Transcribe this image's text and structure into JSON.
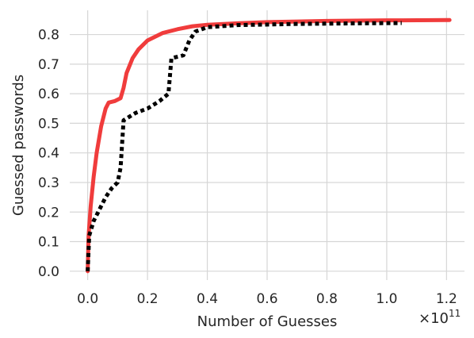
{
  "chart_data": {
    "type": "line",
    "title": "",
    "xlabel": "Number of Guesses",
    "ylabel": "Guessed passwords",
    "x_scale_label": "×10",
    "x_scale_exponent": "11",
    "xlim": [
      -0.06,
      1.26
    ],
    "ylim": [
      -0.03,
      0.882
    ],
    "xticks": [
      0.0,
      0.2,
      0.4,
      0.6,
      0.8,
      1.0,
      1.2
    ],
    "xtick_labels": [
      "0.0",
      "0.2",
      "0.4",
      "0.6",
      "0.8",
      "1.0",
      "1.2"
    ],
    "yticks": [
      0.0,
      0.1,
      0.2,
      0.3,
      0.4,
      0.5,
      0.6,
      0.7,
      0.8
    ],
    "ytick_labels": [
      "0.0",
      "0.1",
      "0.2",
      "0.3",
      "0.4",
      "0.5",
      "0.6",
      "0.7",
      "0.8"
    ],
    "grid": true,
    "legend": "none",
    "series": [
      {
        "style": "solid",
        "color": "#f03c3c",
        "points": [
          [
            0.0,
            0.0
          ],
          [
            0.003,
            0.12
          ],
          [
            0.01,
            0.22
          ],
          [
            0.02,
            0.32
          ],
          [
            0.03,
            0.4
          ],
          [
            0.045,
            0.49
          ],
          [
            0.06,
            0.55
          ],
          [
            0.07,
            0.57
          ],
          [
            0.09,
            0.575
          ],
          [
            0.11,
            0.585
          ],
          [
            0.12,
            0.62
          ],
          [
            0.13,
            0.67
          ],
          [
            0.15,
            0.72
          ],
          [
            0.17,
            0.75
          ],
          [
            0.2,
            0.78
          ],
          [
            0.25,
            0.805
          ],
          [
            0.3,
            0.818
          ],
          [
            0.35,
            0.828
          ],
          [
            0.4,
            0.833
          ],
          [
            0.5,
            0.838
          ],
          [
            0.6,
            0.842
          ],
          [
            0.8,
            0.846
          ],
          [
            1.0,
            0.848
          ],
          [
            1.21,
            0.849
          ]
        ]
      },
      {
        "style": "dotted",
        "color": "#000000",
        "points": [
          [
            0.0,
            0.0
          ],
          [
            0.005,
            0.12
          ],
          [
            0.02,
            0.17
          ],
          [
            0.04,
            0.21
          ],
          [
            0.06,
            0.25
          ],
          [
            0.08,
            0.28
          ],
          [
            0.1,
            0.3
          ],
          [
            0.11,
            0.35
          ],
          [
            0.12,
            0.51
          ],
          [
            0.16,
            0.535
          ],
          [
            0.2,
            0.55
          ],
          [
            0.24,
            0.575
          ],
          [
            0.27,
            0.6
          ],
          [
            0.28,
            0.72
          ],
          [
            0.3,
            0.725
          ],
          [
            0.32,
            0.73
          ],
          [
            0.34,
            0.78
          ],
          [
            0.36,
            0.81
          ],
          [
            0.4,
            0.825
          ],
          [
            0.5,
            0.832
          ],
          [
            0.7,
            0.836
          ],
          [
            0.9,
            0.838
          ],
          [
            1.05,
            0.839
          ]
        ]
      }
    ]
  }
}
